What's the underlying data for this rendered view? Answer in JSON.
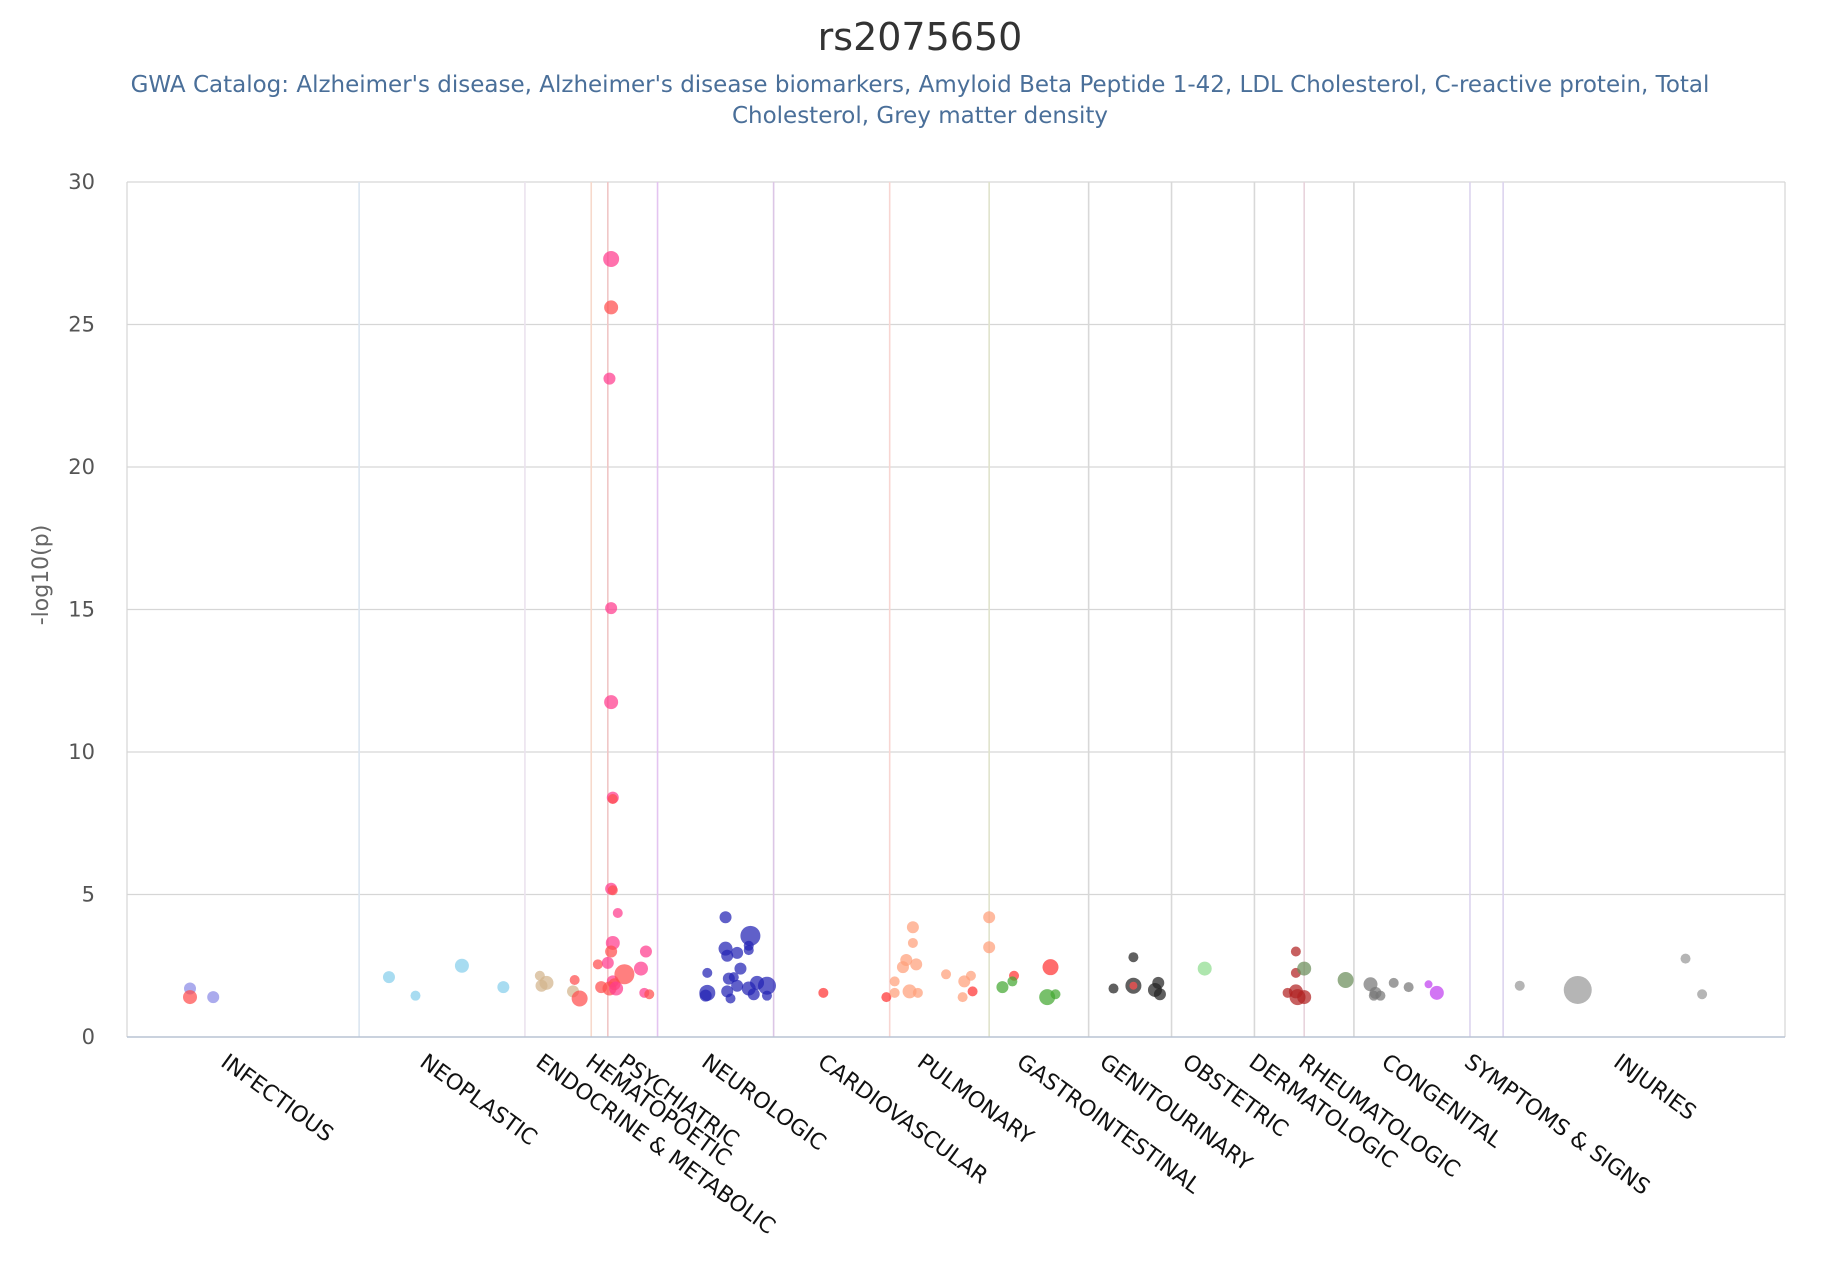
{
  "chart_data": {
    "type": "scatter",
    "title": "rs2075650",
    "subtitle_lines": [
      "GWA Catalog: Alzheimer's disease, Alzheimer's disease biomarkers, Amyloid Beta Peptide 1-42, LDL Cholesterol, C-reactive protein, Total",
      "Cholesterol, Grey matter density"
    ],
    "ylabel": "-log10(p)",
    "ylim": [
      0,
      30
    ],
    "yticks": [
      0,
      5,
      10,
      15,
      20,
      25,
      30
    ],
    "xlim": [
      0,
      100
    ],
    "grid": true,
    "categories": [
      {
        "label": "INFECTIOUS",
        "color": "#8a8ae6",
        "tick": 6
      },
      {
        "label": "NEOPLASTIC",
        "color": "#87ceeb",
        "tick": 18
      },
      {
        "label": "ENDOCRINE & METABOLIC",
        "color": "#d2b48c",
        "tick": 25
      },
      {
        "label": "HEMATOPOETIC",
        "color": "#ff4d4d",
        "tick": 28
      },
      {
        "label": "PSYCHIATRIC",
        "color": "#ff3b8e",
        "tick": 30
      },
      {
        "label": "NEUROLOGIC",
        "color": "#2323b4",
        "tick": 35
      },
      {
        "label": "CARDIOVASCULAR",
        "color": "#ff3333",
        "tick": 42
      },
      {
        "label": "PULMONARY",
        "color": "#ffa07a",
        "tick": 48
      },
      {
        "label": "GASTROINTESTINAL",
        "color": "#44a832",
        "tick": 54
      },
      {
        "label": "GENITOURINARY",
        "color": "#222222",
        "tick": 59
      },
      {
        "label": "OBSTETRIC",
        "color": "#8fdc8f",
        "tick": 64
      },
      {
        "label": "DERMATOLOGIC",
        "color": "#b22222",
        "tick": 68
      },
      {
        "label": "RHEUMATOLOGIC",
        "color": "#6b8e5a",
        "tick": 71
      },
      {
        "label": "CONGENITAL",
        "color": "#777777",
        "tick": 76
      },
      {
        "label": "SYMPTOMS & SIGNS",
        "color": "#c040f0",
        "tick": 81
      },
      {
        "label": "INJURIES",
        "color": "#999999",
        "tick": 90
      }
    ],
    "dividers": [
      {
        "x": 14,
        "color": "#dbe5f0"
      },
      {
        "x": 24,
        "color": "#ebe3ee"
      },
      {
        "x": 28,
        "color": "#f7d9cc"
      },
      {
        "x": 29,
        "color": "#f0c6c6"
      },
      {
        "x": 32,
        "color": "#e4c4f0"
      },
      {
        "x": 39,
        "color": "#dcc6e6"
      },
      {
        "x": 46,
        "color": "#f8d6d2"
      },
      {
        "x": 52,
        "color": "#e0e3cc"
      },
      {
        "x": 58,
        "color": "#d8d8d8"
      },
      {
        "x": 63,
        "color": "#d8d8d8"
      },
      {
        "x": 68,
        "color": "#d8d8d8"
      },
      {
        "x": 71,
        "color": "#e8d4dc"
      },
      {
        "x": 74,
        "color": "#d8d8d8"
      },
      {
        "x": 81,
        "color": "#dcd4ee"
      },
      {
        "x": 83,
        "color": "#dcd4ee"
      }
    ],
    "points": [
      {
        "x": 3.8,
        "y": 1.7,
        "c": "INFECTIOUS",
        "s": 6
      },
      {
        "x": 3.8,
        "y": 1.4,
        "c": "HEMATOPOETIC",
        "s": 7
      },
      {
        "x": 5.2,
        "y": 1.4,
        "c": "INFECTIOUS",
        "s": 6
      },
      {
        "x": 15.8,
        "y": 2.1,
        "c": "NEOPLASTIC",
        "s": 6
      },
      {
        "x": 17.4,
        "y": 1.45,
        "c": "NEOPLASTIC",
        "s": 5
      },
      {
        "x": 20.2,
        "y": 2.5,
        "c": "NEOPLASTIC",
        "s": 7
      },
      {
        "x": 22.7,
        "y": 1.75,
        "c": "NEOPLASTIC",
        "s": 6
      },
      {
        "x": 25.0,
        "y": 1.8,
        "c": "ENDOCRINE & METABOLIC",
        "s": 6
      },
      {
        "x": 25.3,
        "y": 1.9,
        "c": "ENDOCRINE & METABOLIC",
        "s": 7
      },
      {
        "x": 24.9,
        "y": 2.15,
        "c": "ENDOCRINE & METABOLIC",
        "s": 5
      },
      {
        "x": 26.9,
        "y": 1.6,
        "c": "ENDOCRINE & METABOLIC",
        "s": 6
      },
      {
        "x": 27.0,
        "y": 2.0,
        "c": "HEMATOPOETIC",
        "s": 5
      },
      {
        "x": 27.3,
        "y": 1.35,
        "c": "HEMATOPOETIC",
        "s": 8
      },
      {
        "x": 28.4,
        "y": 2.55,
        "c": "HEMATOPOETIC",
        "s": 5
      },
      {
        "x": 28.6,
        "y": 1.75,
        "c": "HEMATOPOETIC",
        "s": 6
      },
      {
        "x": 29.2,
        "y": 27.3,
        "c": "PSYCHIATRIC",
        "s": 8
      },
      {
        "x": 29.2,
        "y": 25.6,
        "c": "HEMATOPOETIC",
        "s": 7
      },
      {
        "x": 29.1,
        "y": 23.1,
        "c": "PSYCHIATRIC",
        "s": 6
      },
      {
        "x": 29.2,
        "y": 15.05,
        "c": "PSYCHIATRIC",
        "s": 6
      },
      {
        "x": 29.2,
        "y": 11.75,
        "c": "PSYCHIATRIC",
        "s": 7
      },
      {
        "x": 29.3,
        "y": 8.4,
        "c": "PSYCHIATRIC",
        "s": 6
      },
      {
        "x": 29.3,
        "y": 8.35,
        "c": "HEMATOPOETIC",
        "s": 5
      },
      {
        "x": 29.2,
        "y": 5.2,
        "c": "PSYCHIATRIC",
        "s": 6
      },
      {
        "x": 29.3,
        "y": 5.15,
        "c": "HEMATOPOETIC",
        "s": 5
      },
      {
        "x": 29.6,
        "y": 4.35,
        "c": "PSYCHIATRIC",
        "s": 5
      },
      {
        "x": 29.3,
        "y": 3.3,
        "c": "PSYCHIATRIC",
        "s": 7
      },
      {
        "x": 29.2,
        "y": 3.0,
        "c": "HEMATOPOETIC",
        "s": 6
      },
      {
        "x": 29.0,
        "y": 2.6,
        "c": "PSYCHIATRIC",
        "s": 6
      },
      {
        "x": 29.3,
        "y": 1.95,
        "c": "PSYCHIATRIC",
        "s": 6
      },
      {
        "x": 29.4,
        "y": 1.85,
        "c": "HEMATOPOETIC",
        "s": 6
      },
      {
        "x": 29.1,
        "y": 1.7,
        "c": "HEMATOPOETIC",
        "s": 7
      },
      {
        "x": 29.5,
        "y": 1.7,
        "c": "PSYCHIATRIC",
        "s": 7
      },
      {
        "x": 30.0,
        "y": 2.2,
        "c": "HEMATOPOETIC",
        "s": 10
      },
      {
        "x": 31.0,
        "y": 2.4,
        "c": "PSYCHIATRIC",
        "s": 7
      },
      {
        "x": 31.3,
        "y": 3.0,
        "c": "PSYCHIATRIC",
        "s": 6
      },
      {
        "x": 31.2,
        "y": 1.55,
        "c": "PSYCHIATRIC",
        "s": 5
      },
      {
        "x": 31.5,
        "y": 1.5,
        "c": "HEMATOPOETIC",
        "s": 5
      },
      {
        "x": 35.0,
        "y": 2.25,
        "c": "NEUROLOGIC",
        "s": 5
      },
      {
        "x": 35.0,
        "y": 1.55,
        "c": "NEUROLOGIC",
        "s": 8
      },
      {
        "x": 34.9,
        "y": 1.45,
        "c": "NEUROLOGIC",
        "s": 6
      },
      {
        "x": 36.1,
        "y": 4.2,
        "c": "NEUROLOGIC",
        "s": 6
      },
      {
        "x": 36.1,
        "y": 3.1,
        "c": "NEUROLOGIC",
        "s": 7
      },
      {
        "x": 36.2,
        "y": 2.85,
        "c": "NEUROLOGIC",
        "s": 6
      },
      {
        "x": 36.3,
        "y": 2.05,
        "c": "NEUROLOGIC",
        "s": 6
      },
      {
        "x": 36.2,
        "y": 1.6,
        "c": "NEUROLOGIC",
        "s": 6
      },
      {
        "x": 36.4,
        "y": 1.35,
        "c": "NEUROLOGIC",
        "s": 5
      },
      {
        "x": 36.6,
        "y": 2.1,
        "c": "NEUROLOGIC",
        "s": 5
      },
      {
        "x": 36.8,
        "y": 2.95,
        "c": "NEUROLOGIC",
        "s": 6
      },
      {
        "x": 37.0,
        "y": 2.4,
        "c": "NEUROLOGIC",
        "s": 6
      },
      {
        "x": 36.8,
        "y": 1.8,
        "c": "NEUROLOGIC",
        "s": 6
      },
      {
        "x": 37.6,
        "y": 3.55,
        "c": "NEUROLOGIC",
        "s": 10
      },
      {
        "x": 37.5,
        "y": 3.2,
        "c": "NEUROLOGIC",
        "s": 5
      },
      {
        "x": 37.5,
        "y": 3.05,
        "c": "NEUROLOGIC",
        "s": 5
      },
      {
        "x": 37.5,
        "y": 1.7,
        "c": "NEUROLOGIC",
        "s": 7
      },
      {
        "x": 37.8,
        "y": 1.5,
        "c": "NEUROLOGIC",
        "s": 6
      },
      {
        "x": 38.0,
        "y": 1.9,
        "c": "NEUROLOGIC",
        "s": 7
      },
      {
        "x": 38.6,
        "y": 1.8,
        "c": "NEUROLOGIC",
        "s": 9
      },
      {
        "x": 38.6,
        "y": 1.45,
        "c": "NEUROLOGIC",
        "s": 5
      },
      {
        "x": 42.0,
        "y": 1.55,
        "c": "CARDIOVASCULAR",
        "s": 5
      },
      {
        "x": 45.8,
        "y": 1.4,
        "c": "CARDIOVASCULAR",
        "s": 5
      },
      {
        "x": 46.3,
        "y": 1.95,
        "c": "PULMONARY",
        "s": 5
      },
      {
        "x": 46.3,
        "y": 1.55,
        "c": "PULMONARY",
        "s": 5
      },
      {
        "x": 46.8,
        "y": 2.45,
        "c": "PULMONARY",
        "s": 6
      },
      {
        "x": 47.0,
        "y": 2.7,
        "c": "PULMONARY",
        "s": 6
      },
      {
        "x": 47.4,
        "y": 3.85,
        "c": "PULMONARY",
        "s": 6
      },
      {
        "x": 47.4,
        "y": 3.3,
        "c": "PULMONARY",
        "s": 5
      },
      {
        "x": 47.6,
        "y": 2.55,
        "c": "PULMONARY",
        "s": 6
      },
      {
        "x": 47.2,
        "y": 1.6,
        "c": "PULMONARY",
        "s": 7
      },
      {
        "x": 47.7,
        "y": 1.55,
        "c": "PULMONARY",
        "s": 5
      },
      {
        "x": 49.4,
        "y": 2.2,
        "c": "PULMONARY",
        "s": 5
      },
      {
        "x": 50.5,
        "y": 1.95,
        "c": "PULMONARY",
        "s": 6
      },
      {
        "x": 50.9,
        "y": 2.15,
        "c": "PULMONARY",
        "s": 5
      },
      {
        "x": 50.4,
        "y": 1.4,
        "c": "PULMONARY",
        "s": 5
      },
      {
        "x": 51.0,
        "y": 1.6,
        "c": "CARDIOVASCULAR",
        "s": 5
      },
      {
        "x": 52.0,
        "y": 4.2,
        "c": "PULMONARY",
        "s": 6
      },
      {
        "x": 52.0,
        "y": 3.15,
        "c": "PULMONARY",
        "s": 6
      },
      {
        "x": 52.8,
        "y": 1.75,
        "c": "GASTROINTESTINAL",
        "s": 6
      },
      {
        "x": 53.5,
        "y": 2.15,
        "c": "CARDIOVASCULAR",
        "s": 5
      },
      {
        "x": 53.4,
        "y": 1.95,
        "c": "GASTROINTESTINAL",
        "s": 5
      },
      {
        "x": 55.7,
        "y": 2.45,
        "c": "CARDIOVASCULAR",
        "s": 8
      },
      {
        "x": 55.5,
        "y": 1.4,
        "c": "GASTROINTESTINAL",
        "s": 8
      },
      {
        "x": 56.0,
        "y": 1.5,
        "c": "GASTROINTESTINAL",
        "s": 5
      },
      {
        "x": 59.5,
        "y": 1.7,
        "c": "GENITOURINARY",
        "s": 5
      },
      {
        "x": 60.7,
        "y": 2.8,
        "c": "GENITOURINARY",
        "s": 5
      },
      {
        "x": 60.7,
        "y": 1.8,
        "c": "GENITOURINARY",
        "s": 8
      },
      {
        "x": 60.7,
        "y": 1.8,
        "c": "HEMATOPOETIC",
        "s": 4
      },
      {
        "x": 62.0,
        "y": 1.65,
        "c": "GENITOURINARY",
        "s": 7
      },
      {
        "x": 62.2,
        "y": 1.9,
        "c": "GENITOURINARY",
        "s": 6
      },
      {
        "x": 62.3,
        "y": 1.5,
        "c": "GENITOURINARY",
        "s": 6
      },
      {
        "x": 65.0,
        "y": 2.4,
        "c": "OBSTETRIC",
        "s": 7
      },
      {
        "x": 70.5,
        "y": 3.0,
        "c": "DERMATOLOGIC",
        "s": 5
      },
      {
        "x": 70.5,
        "y": 2.25,
        "c": "DERMATOLOGIC",
        "s": 5
      },
      {
        "x": 70.0,
        "y": 1.55,
        "c": "DERMATOLOGIC",
        "s": 5
      },
      {
        "x": 70.5,
        "y": 1.6,
        "c": "DERMATOLOGIC",
        "s": 7
      },
      {
        "x": 70.6,
        "y": 1.4,
        "c": "DERMATOLOGIC",
        "s": 8
      },
      {
        "x": 71.0,
        "y": 1.4,
        "c": "DERMATOLOGIC",
        "s": 7
      },
      {
        "x": 71.0,
        "y": 2.4,
        "c": "RHEUMATOLOGIC",
        "s": 7
      },
      {
        "x": 73.5,
        "y": 2.0,
        "c": "RHEUMATOLOGIC",
        "s": 8
      },
      {
        "x": 75.0,
        "y": 1.85,
        "c": "CONGENITAL",
        "s": 7
      },
      {
        "x": 75.3,
        "y": 1.55,
        "c": "CONGENITAL",
        "s": 6
      },
      {
        "x": 75.2,
        "y": 1.45,
        "c": "CONGENITAL",
        "s": 5
      },
      {
        "x": 75.6,
        "y": 1.45,
        "c": "CONGENITAL",
        "s": 5
      },
      {
        "x": 76.4,
        "y": 1.9,
        "c": "CONGENITAL",
        "s": 5
      },
      {
        "x": 77.3,
        "y": 1.75,
        "c": "CONGENITAL",
        "s": 5
      },
      {
        "x": 78.5,
        "y": 1.85,
        "c": "SYMPTOMS & SIGNS",
        "s": 4
      },
      {
        "x": 79.0,
        "y": 1.55,
        "c": "SYMPTOMS & SIGNS",
        "s": 7
      },
      {
        "x": 84.0,
        "y": 1.8,
        "c": "INJURIES",
        "s": 5
      },
      {
        "x": 87.5,
        "y": 1.65,
        "c": "INJURIES",
        "s": 14
      },
      {
        "x": 94.0,
        "y": 2.75,
        "c": "INJURIES",
        "s": 5
      },
      {
        "x": 95.0,
        "y": 1.5,
        "c": "INJURIES",
        "s": 5
      }
    ]
  }
}
